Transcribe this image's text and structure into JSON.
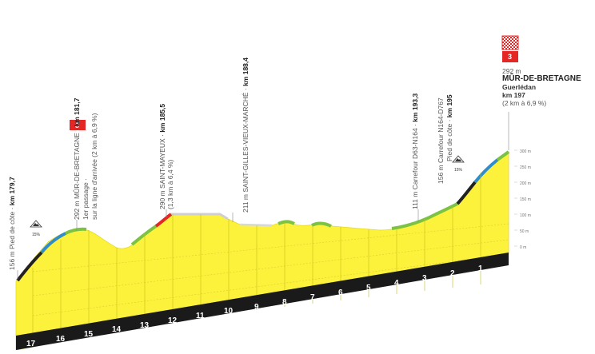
{
  "finish": {
    "altitude": "292 m",
    "town": "MÛR-DE-BRETAGNE",
    "subtitle": "Guerlédan",
    "km": "km 197",
    "climb": "(2 km à 6,9 %)",
    "category": "3"
  },
  "waypoints": [
    {
      "line1": "156 m Pied de côte · ",
      "km": "km 179,7"
    },
    {
      "line1": "292 m MÛR-DE-BRETAGNE · ",
      "km": "km 181,7",
      "line2": "1er passage ·",
      "line3": "sur la ligne d'arrivée (2 km à 6,9 %)",
      "category": "3"
    },
    {
      "line1": "290 m SAINT-MAYEUX · ",
      "km": "km 185,5",
      "line2": "(1,3 km à 6,4 %)"
    },
    {
      "line1": "211 m SAINT-GILLES-VIEUX-MARCHÉ · ",
      "km": "km 188,4"
    },
    {
      "line1": "111 m Carrefour D63-N164 · ",
      "km": "km 193,3"
    },
    {
      "line1": "156 m Carrefour N164-D767",
      "line2": "Pied de côte · ",
      "km": "km 195"
    }
  ],
  "climb_markers": [
    {
      "pct": "15%"
    },
    {
      "pct": "15%"
    }
  ],
  "altitude_scale": [
    "300 m",
    "250 m",
    "200 m",
    "150 m",
    "100 m",
    "50 m",
    "0 m"
  ],
  "km_marks": [
    "17",
    "16",
    "15",
    "14",
    "13",
    "12",
    "11",
    "10",
    "9",
    "8",
    "7",
    "6",
    "5",
    "4",
    "3",
    "2",
    "1"
  ],
  "colors": {
    "profile_fill": "#fcf23b",
    "profile_top": "#e9dd22",
    "base_band": "#1a1a1a",
    "green": "#7cc243",
    "blue": "#2f8ccd",
    "red": "#e42624",
    "black_segment": "#222222",
    "plateau": "#e8e8e8",
    "category_badge": "#e42624"
  }
}
